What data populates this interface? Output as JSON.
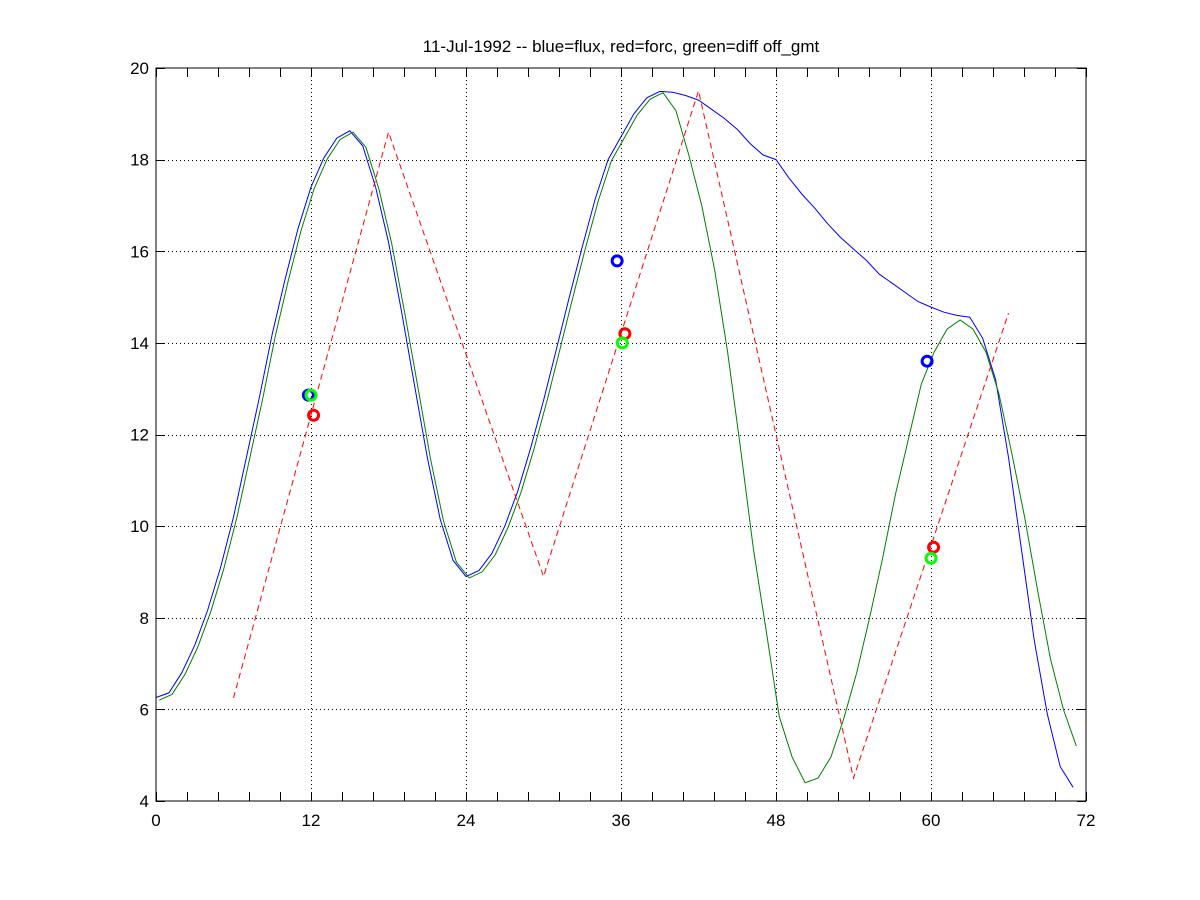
{
  "chart_data": {
    "type": "line",
    "title": "11-Jul-1992 -- blue=flux, red=forc, green=diff off_gmt",
    "xlabel": "",
    "ylabel": "",
    "xlim": [
      0,
      72
    ],
    "ylim": [
      4,
      20
    ],
    "xticks": [
      0,
      12,
      24,
      36,
      48,
      60,
      72
    ],
    "xtick_labels": [
      "0",
      "12",
      "24",
      "36",
      "48",
      "60",
      "72"
    ],
    "xminor_step": 2.4,
    "yticks": [
      4,
      6,
      8,
      10,
      12,
      14,
      16,
      18,
      20
    ],
    "ytick_labels": [
      "4",
      "6",
      "8",
      "10",
      "12",
      "14",
      "16",
      "18",
      "20"
    ],
    "grid": true,
    "legend": "none",
    "series": [
      {
        "name": "flux",
        "color": "#0000ff",
        "style": "solid",
        "x": [
          0,
          1,
          2,
          3,
          4,
          5,
          6,
          7,
          8,
          9,
          10,
          11,
          12,
          13,
          14,
          15,
          16,
          17,
          18,
          19,
          20,
          21,
          22,
          23,
          24,
          25,
          26,
          27,
          28,
          29,
          30,
          31,
          32,
          33,
          34,
          35,
          36,
          37,
          38,
          39,
          40,
          41,
          42,
          43,
          44,
          45,
          46,
          47,
          48,
          49,
          50,
          51,
          52,
          53,
          54,
          55,
          56,
          57,
          58,
          59,
          60,
          61,
          62,
          63,
          64,
          65,
          66,
          67,
          68,
          69,
          70,
          71
        ],
        "y": [
          6.26,
          6.36,
          6.8,
          7.4,
          8.17,
          9.1,
          10.2,
          11.5,
          12.8,
          14.2,
          15.4,
          16.5,
          17.4,
          18.04,
          18.47,
          18.63,
          18.3,
          17.4,
          16.2,
          14.7,
          13.1,
          11.5,
          10.15,
          9.25,
          8.9,
          9.03,
          9.4,
          10.0,
          10.76,
          11.7,
          12.74,
          13.86,
          15.0,
          16.1,
          17.14,
          18.0,
          18.5,
          19.0,
          19.35,
          19.49,
          19.47,
          19.4,
          19.3,
          19.1,
          18.9,
          18.66,
          18.35,
          18.1,
          18.0,
          17.6,
          17.25,
          16.94,
          16.6,
          16.3,
          16.05,
          15.8,
          15.5,
          15.3,
          15.1,
          14.9,
          14.78,
          14.67,
          14.6,
          14.56,
          14.1,
          13.2,
          11.5,
          9.5,
          7.5,
          5.9,
          4.75,
          4.3
        ]
      },
      {
        "name": "diff off_gmt",
        "color": "#008000",
        "style": "solid",
        "x": [
          0.25,
          1.25,
          2.25,
          3.25,
          4.25,
          5.25,
          6.25,
          7.25,
          8.25,
          9.25,
          10.25,
          11.25,
          12.25,
          13.25,
          14.25,
          15.25,
          16.25,
          17.25,
          18.25,
          19.25,
          20.25,
          21.25,
          22.25,
          23.25,
          24.25,
          25.25,
          26.25,
          27.25,
          28.25,
          29.25,
          30.25,
          31.25,
          32.25,
          33.25,
          34.25,
          35.25,
          36.25,
          37.25,
          38.25,
          39.25,
          40.25,
          41.25,
          42.25,
          43.25,
          44.25,
          45.25,
          46.25,
          47.25,
          48.25,
          49.25,
          50.25,
          51.25,
          52.25,
          53.25,
          54.25,
          55.25,
          56.25,
          57.25,
          58.25,
          59.25,
          60.25,
          61.25,
          62.25,
          63.25,
          64.25,
          65.25,
          66.25,
          67.25,
          68.25,
          69.25,
          70.25,
          71.25
        ],
        "y": [
          6.2,
          6.33,
          6.77,
          7.37,
          8.14,
          9.07,
          10.17,
          11.47,
          12.77,
          14.17,
          15.37,
          16.47,
          17.37,
          18.01,
          18.44,
          18.6,
          18.27,
          17.37,
          16.17,
          14.67,
          13.07,
          11.47,
          10.12,
          9.22,
          8.87,
          9.0,
          9.37,
          9.97,
          10.73,
          11.67,
          12.71,
          13.83,
          14.97,
          16.07,
          17.11,
          17.97,
          18.47,
          18.97,
          19.32,
          19.46,
          19.07,
          18.1,
          17.0,
          15.6,
          13.8,
          11.7,
          9.5,
          7.7,
          5.85,
          4.96,
          4.4,
          4.5,
          4.96,
          5.8,
          6.8,
          8.0,
          9.3,
          10.7,
          11.9,
          13.1,
          13.8,
          14.3,
          14.5,
          14.3,
          13.8,
          12.9,
          11.6,
          10.2,
          8.6,
          7.1,
          6.0,
          5.2
        ]
      },
      {
        "name": "forc",
        "color": "#ff0000",
        "style": "dashed",
        "x": [
          6,
          18,
          30,
          42,
          54,
          66
        ],
        "y": [
          6.25,
          18.6,
          8.9,
          19.5,
          4.5,
          14.65
        ]
      }
    ],
    "markers": [
      {
        "name": "flux",
        "color": "#0000ff",
        "x": 11.8,
        "y": 12.86
      },
      {
        "name": "diff",
        "color": "#00ff00",
        "x": 12.0,
        "y": 12.86
      },
      {
        "name": "forc",
        "color": "#ff0000",
        "x": 12.2,
        "y": 12.42
      },
      {
        "name": "flux",
        "color": "#0000ff",
        "x": 35.7,
        "y": 15.79
      },
      {
        "name": "forc",
        "color": "#ff0000",
        "x": 36.3,
        "y": 14.2
      },
      {
        "name": "diff",
        "color": "#00ff00",
        "x": 36.1,
        "y": 14.0
      },
      {
        "name": "flux",
        "color": "#0000ff",
        "x": 59.7,
        "y": 13.6
      },
      {
        "name": "forc",
        "color": "#ff0000",
        "x": 60.2,
        "y": 9.54
      },
      {
        "name": "diff",
        "color": "#00ff00",
        "x": 60.0,
        "y": 9.3
      }
    ]
  }
}
